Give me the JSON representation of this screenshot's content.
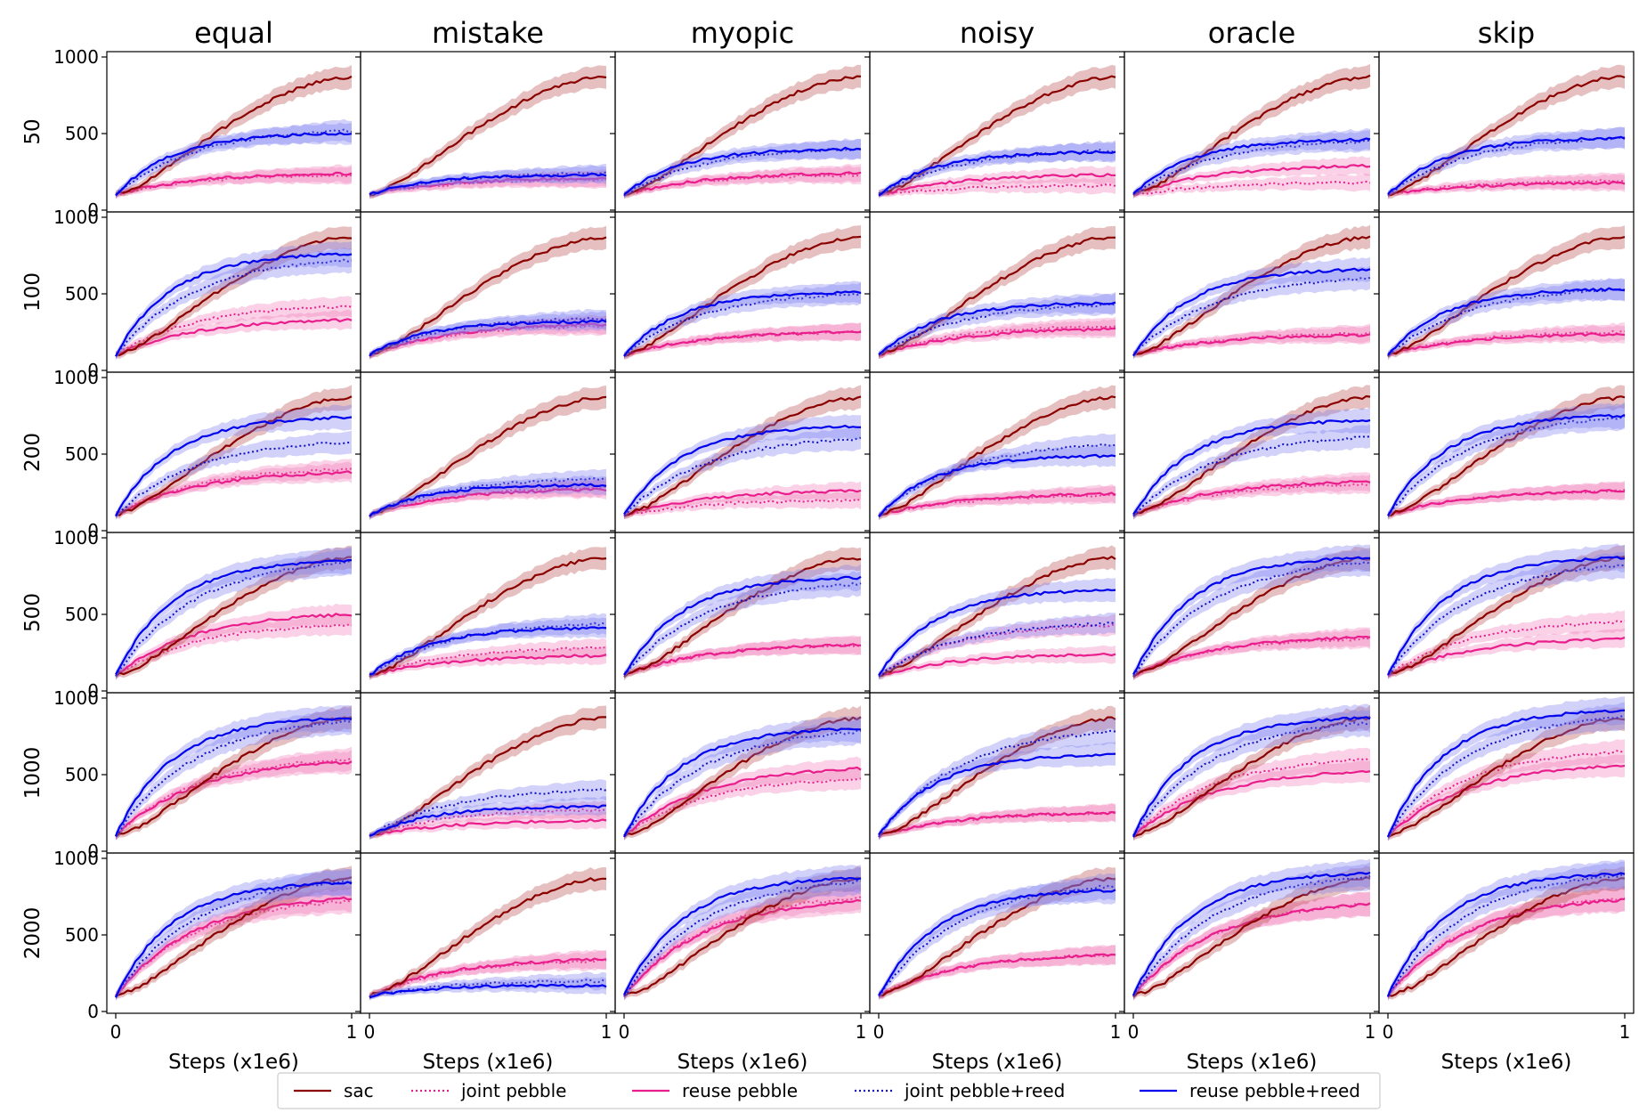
{
  "chart_data": {
    "type": "line",
    "layout": "grid",
    "columns": [
      "equal",
      "mistake",
      "myopic",
      "noisy",
      "oracle",
      "skip"
    ],
    "rows": [
      "50",
      "100",
      "200",
      "500",
      "1000",
      "2000"
    ],
    "xlabel": "Steps (x1e6)",
    "xlim": [
      0,
      1
    ],
    "xticks": [
      "0",
      "1"
    ],
    "ylim": [
      0,
      1000
    ],
    "yticks": [
      "0",
      "500",
      "1000"
    ],
    "x_points": [
      0,
      0.1,
      0.2,
      0.3,
      0.4,
      0.5,
      0.6,
      0.7,
      0.8,
      0.9,
      1.0
    ],
    "legend": [
      {
        "name": "sac",
        "color": "#8b0000",
        "style": "solid"
      },
      {
        "name": "joint pebble",
        "color": "#e91e8c",
        "style": "dotted"
      },
      {
        "name": "reuse pebble",
        "color": "#e91e8c",
        "style": "solid"
      },
      {
        "name": "joint pebble+reed",
        "color": "#1010c8",
        "style": "dotted"
      },
      {
        "name": "reuse pebble+reed",
        "color": "#0000ee",
        "style": "solid"
      }
    ],
    "sac_curve": [
      100,
      160,
      260,
      370,
      480,
      580,
      670,
      750,
      810,
      855,
      870
    ],
    "series_final_values": {
      "50": {
        "equal": {
          "joint pebble": 230,
          "reuse pebble": 240,
          "joint pebble+reed": 520,
          "reuse pebble+reed": 500
        },
        "mistake": {
          "joint pebble": 200,
          "reuse pebble": 210,
          "joint pebble+reed": 240,
          "reuse pebble+reed": 230
        },
        "myopic": {
          "joint pebble": 230,
          "reuse pebble": 240,
          "joint pebble+reed": 400,
          "reuse pebble+reed": 400
        },
        "noisy": {
          "joint pebble": 160,
          "reuse pebble": 230,
          "joint pebble+reed": 390,
          "reuse pebble+reed": 380
        },
        "oracle": {
          "joint pebble": 180,
          "reuse pebble": 290,
          "joint pebble+reed": 450,
          "reuse pebble+reed": 460
        },
        "skip": {
          "joint pebble": 190,
          "reuse pebble": 180,
          "joint pebble+reed": 470,
          "reuse pebble+reed": 470
        }
      },
      "100": {
        "equal": {
          "joint pebble": 420,
          "reuse pebble": 330,
          "joint pebble+reed": 720,
          "reuse pebble+reed": 760
        },
        "mistake": {
          "joint pebble": 290,
          "reuse pebble": 300,
          "joint pebble+reed": 340,
          "reuse pebble+reed": 320
        },
        "myopic": {
          "joint pebble": 250,
          "reuse pebble": 250,
          "joint pebble+reed": 500,
          "reuse pebble+reed": 510
        },
        "noisy": {
          "joint pebble": 290,
          "reuse pebble": 270,
          "joint pebble+reed": 430,
          "reuse pebble+reed": 440
        },
        "oracle": {
          "joint pebble": 240,
          "reuse pebble": 230,
          "joint pebble+reed": 600,
          "reuse pebble+reed": 660
        },
        "skip": {
          "joint pebble": 250,
          "reuse pebble": 240,
          "joint pebble+reed": 530,
          "reuse pebble+reed": 530
        }
      },
      "200": {
        "equal": {
          "joint pebble": 400,
          "reuse pebble": 380,
          "joint pebble+reed": 580,
          "reuse pebble+reed": 740
        },
        "mistake": {
          "joint pebble": 280,
          "reuse pebble": 270,
          "joint pebble+reed": 340,
          "reuse pebble+reed": 300
        },
        "myopic": {
          "joint pebble": 200,
          "reuse pebble": 260,
          "joint pebble+reed": 600,
          "reuse pebble+reed": 680
        },
        "noisy": {
          "joint pebble": 230,
          "reuse pebble": 240,
          "joint pebble+reed": 560,
          "reuse pebble+reed": 490
        },
        "oracle": {
          "joint pebble": 300,
          "reuse pebble": 320,
          "joint pebble+reed": 610,
          "reuse pebble+reed": 720
        },
        "skip": {
          "joint pebble": 260,
          "reuse pebble": 260,
          "joint pebble+reed": 740,
          "reuse pebble+reed": 750
        }
      },
      "500": {
        "equal": {
          "joint pebble": 430,
          "reuse pebble": 500,
          "joint pebble+reed": 840,
          "reuse pebble+reed": 850
        },
        "mistake": {
          "joint pebble": 280,
          "reuse pebble": 230,
          "joint pebble+reed": 440,
          "reuse pebble+reed": 410
        },
        "myopic": {
          "joint pebble": 300,
          "reuse pebble": 300,
          "joint pebble+reed": 700,
          "reuse pebble+reed": 740
        },
        "noisy": {
          "joint pebble": 430,
          "reuse pebble": 240,
          "joint pebble+reed": 440,
          "reuse pebble+reed": 660
        },
        "oracle": {
          "joint pebble": 340,
          "reuse pebble": 350,
          "joint pebble+reed": 840,
          "reuse pebble+reed": 870
        },
        "skip": {
          "joint pebble": 450,
          "reuse pebble": 340,
          "joint pebble+reed": 820,
          "reuse pebble+reed": 870
        }
      },
      "1000": {
        "equal": {
          "joint pebble": 600,
          "reuse pebble": 580,
          "joint pebble+reed": 850,
          "reuse pebble+reed": 870
        },
        "mistake": {
          "joint pebble": 270,
          "reuse pebble": 200,
          "joint pebble+reed": 400,
          "reuse pebble+reed": 290
        },
        "myopic": {
          "joint pebble": 470,
          "reuse pebble": 540,
          "joint pebble+reed": 780,
          "reuse pebble+reed": 800
        },
        "noisy": {
          "joint pebble": 250,
          "reuse pebble": 250,
          "joint pebble+reed": 780,
          "reuse pebble+reed": 630
        },
        "oracle": {
          "joint pebble": 600,
          "reuse pebble": 520,
          "joint pebble+reed": 840,
          "reuse pebble+reed": 870
        },
        "skip": {
          "joint pebble": 650,
          "reuse pebble": 560,
          "joint pebble+reed": 880,
          "reuse pebble+reed": 920
        }
      },
      "2000": {
        "equal": {
          "joint pebble": 720,
          "reuse pebble": 740,
          "joint pebble+reed": 850,
          "reuse pebble+reed": 840
        },
        "mistake": {
          "joint pebble": 330,
          "reuse pebble": 340,
          "joint pebble+reed": 200,
          "reuse pebble+reed": 170
        },
        "myopic": {
          "joint pebble": 740,
          "reuse pebble": 720,
          "joint pebble+reed": 850,
          "reuse pebble+reed": 870
        },
        "noisy": {
          "joint pebble": 370,
          "reuse pebble": 370,
          "joint pebble+reed": 820,
          "reuse pebble+reed": 790
        },
        "oracle": {
          "joint pebble": 700,
          "reuse pebble": 700,
          "joint pebble+reed": 880,
          "reuse pebble+reed": 900
        },
        "skip": {
          "joint pebble": 740,
          "reuse pebble": 730,
          "joint pebble+reed": 890,
          "reuse pebble+reed": 900
        }
      }
    }
  }
}
